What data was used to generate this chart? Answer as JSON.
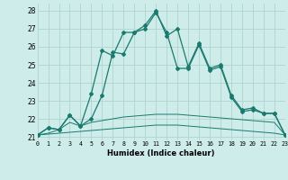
{
  "xlabel": "Humidex (Indice chaleur)",
  "xlim": [
    0,
    23
  ],
  "ylim": [
    20.8,
    28.4
  ],
  "yticks": [
    21,
    22,
    23,
    24,
    25,
    26,
    27,
    28
  ],
  "xticks": [
    0,
    1,
    2,
    3,
    4,
    5,
    6,
    7,
    8,
    9,
    10,
    11,
    12,
    13,
    14,
    15,
    16,
    17,
    18,
    19,
    20,
    21,
    22,
    23
  ],
  "bg_color": "#ceecea",
  "grid_color": "#b0d4d0",
  "line_color": "#1a7a6e",
  "line1_x": [
    0,
    1,
    2,
    3,
    4,
    5,
    6,
    7,
    8,
    9,
    10,
    11,
    12,
    13,
    14,
    15,
    16,
    17,
    18,
    19,
    20,
    21,
    22,
    23
  ],
  "line1_y": [
    21.1,
    21.15,
    21.2,
    21.25,
    21.3,
    21.35,
    21.4,
    21.45,
    21.5,
    21.55,
    21.6,
    21.65,
    21.65,
    21.65,
    21.6,
    21.55,
    21.5,
    21.45,
    21.4,
    21.35,
    21.3,
    21.25,
    21.2,
    21.1
  ],
  "line2_x": [
    0,
    1,
    2,
    3,
    4,
    5,
    6,
    7,
    8,
    9,
    10,
    11,
    12,
    13,
    14,
    15,
    16,
    17,
    18,
    19,
    20,
    21,
    22,
    23
  ],
  "line2_y": [
    21.1,
    21.2,
    21.4,
    21.8,
    21.6,
    21.8,
    21.9,
    22.0,
    22.1,
    22.15,
    22.2,
    22.25,
    22.25,
    22.25,
    22.2,
    22.15,
    22.1,
    22.05,
    22.0,
    21.95,
    21.9,
    21.85,
    21.8,
    21.1
  ],
  "line3_x": [
    0,
    1,
    2,
    3,
    4,
    5,
    6,
    7,
    8,
    9,
    10,
    11,
    12,
    13,
    14,
    15,
    16,
    17,
    18,
    19,
    20,
    21,
    22,
    23
  ],
  "line3_y": [
    21.1,
    21.5,
    21.4,
    22.2,
    21.6,
    22.0,
    23.3,
    25.7,
    25.6,
    26.8,
    27.0,
    27.9,
    26.8,
    24.8,
    24.8,
    26.1,
    24.7,
    24.9,
    23.2,
    22.4,
    22.5,
    22.3,
    22.3,
    21.1
  ],
  "line4_x": [
    0,
    1,
    2,
    3,
    4,
    5,
    6,
    7,
    8,
    9,
    10,
    11,
    12,
    13,
    14,
    15,
    16,
    17,
    18,
    19,
    20,
    21,
    22,
    23
  ],
  "line4_y": [
    21.1,
    21.5,
    21.4,
    22.2,
    21.6,
    23.4,
    25.8,
    25.5,
    26.8,
    26.8,
    27.2,
    28.0,
    26.6,
    27.0,
    24.9,
    26.2,
    24.8,
    25.0,
    23.3,
    22.5,
    22.6,
    22.3,
    22.3,
    21.1
  ]
}
